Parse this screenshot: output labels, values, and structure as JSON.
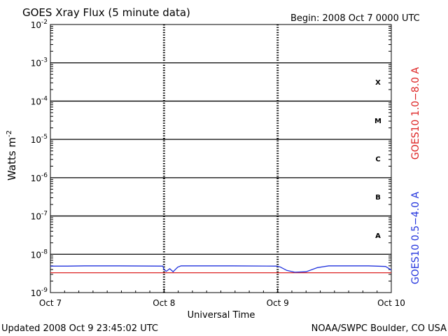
{
  "chart_data": {
    "type": "line",
    "title": "GOES Xray Flux (5 minute data)",
    "begin_label": "Begin:  2008 Oct 7 0000 UTC",
    "xlabel": "Universal Time",
    "ylabel": "Watts m",
    "ylabel_sup": "-2",
    "footer_left": "Updated 2008 Oct  9 23:45:02 UTC",
    "footer_right": "NOAA/SWPC Boulder, CO USA",
    "x_ticks": [
      "Oct 7",
      "Oct 8",
      "Oct 9",
      "Oct 10"
    ],
    "x_range_days": [
      0,
      3
    ],
    "y_scale": "log",
    "ylim": [
      1e-09,
      0.01
    ],
    "y_tick_base": "10",
    "y_tick_exponents": [
      "-9",
      "-8",
      "-7",
      "-6",
      "-5",
      "-4",
      "-3",
      "-2"
    ],
    "flare_classes": [
      "A",
      "B",
      "C",
      "M",
      "X"
    ],
    "grid": true,
    "series": [
      {
        "name": "GOES10 1.0−8.0 A",
        "color": "#dd2222",
        "x_days": [
          0,
          0.6,
          1.0,
          1.05,
          1.2,
          2.0,
          2.1,
          2.5,
          2.9,
          3.0
        ],
        "y": [
          3.3e-09,
          3.3e-09,
          3.3e-09,
          3.3e-09,
          3.3e-09,
          3.3e-09,
          3.3e-09,
          3.3e-09,
          3.3e-09,
          3.3e-09
        ]
      },
      {
        "name": "GOES10 0.5−4.0 A",
        "color": "#2233dd",
        "x_days": [
          0,
          0.15,
          0.3,
          0.6,
          0.99,
          1.0,
          1.02,
          1.05,
          1.08,
          1.12,
          1.15,
          1.3,
          1.6,
          1.99,
          2.02,
          2.08,
          2.15,
          2.25,
          2.35,
          2.45,
          2.6,
          2.8,
          2.95,
          3.0
        ],
        "y": [
          4.9e-09,
          4.9e-09,
          5e-09,
          5e-09,
          4.9e-09,
          4e-09,
          3.6e-09,
          4.2e-09,
          3.5e-09,
          4.6e-09,
          5e-09,
          5e-09,
          5e-09,
          4.9e-09,
          4.7e-09,
          3.8e-09,
          3.4e-09,
          3.5e-09,
          4.5e-09,
          5e-09,
          5e-09,
          5e-09,
          4.8e-09,
          3.9e-09
        ]
      }
    ]
  }
}
